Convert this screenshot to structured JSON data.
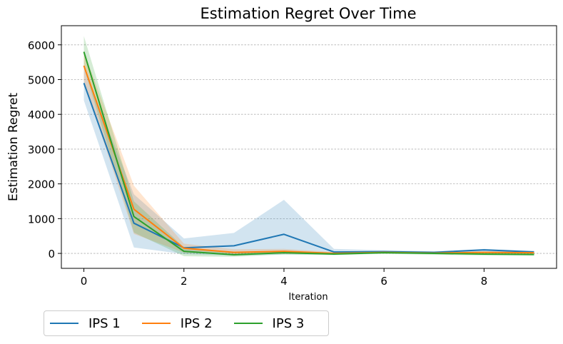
{
  "chart_data": {
    "type": "line",
    "title": "Estimation Regret Over Time",
    "xlabel": "Iteration",
    "ylabel": "Estimation Regret",
    "xlim": [
      -0.45,
      9.45
    ],
    "ylim": [
      -430,
      6550
    ],
    "xticks": [
      0,
      2,
      4,
      6,
      8
    ],
    "yticks": [
      0,
      1000,
      2000,
      3000,
      4000,
      5000,
      6000
    ],
    "grid": "y-dashed",
    "legend_placement": "below-left",
    "x": [
      0,
      1,
      2,
      3,
      4,
      5,
      6,
      7,
      8,
      9
    ],
    "series": [
      {
        "name": "IPS 1",
        "color": "#1f77b4",
        "values": [
          4900,
          870,
          160,
          220,
          550,
          40,
          50,
          30,
          100,
          40
        ],
        "lower": [
          4400,
          170,
          -20,
          -60,
          -30,
          -30,
          0,
          -10,
          30,
          10
        ],
        "upper": [
          5350,
          1700,
          430,
          590,
          1540,
          130,
          90,
          60,
          130,
          80
        ]
      },
      {
        "name": "IPS 2",
        "color": "#ff7f0e",
        "values": [
          5400,
          1270,
          150,
          30,
          60,
          0,
          30,
          10,
          30,
          20
        ],
        "lower": [
          4950,
          560,
          20,
          -20,
          -10,
          -30,
          0,
          -20,
          -10,
          -20
        ],
        "upper": [
          5800,
          1950,
          280,
          120,
          130,
          40,
          60,
          40,
          60,
          50
        ]
      },
      {
        "name": "IPS 3",
        "color": "#2ca02c",
        "values": [
          5800,
          1060,
          60,
          -40,
          20,
          -20,
          20,
          0,
          -20,
          -30
        ],
        "lower": [
          5350,
          600,
          -80,
          -100,
          -30,
          -50,
          -10,
          -40,
          -60,
          -70
        ],
        "upper": [
          6250,
          1500,
          180,
          30,
          70,
          20,
          50,
          30,
          20,
          10
        ]
      }
    ]
  }
}
